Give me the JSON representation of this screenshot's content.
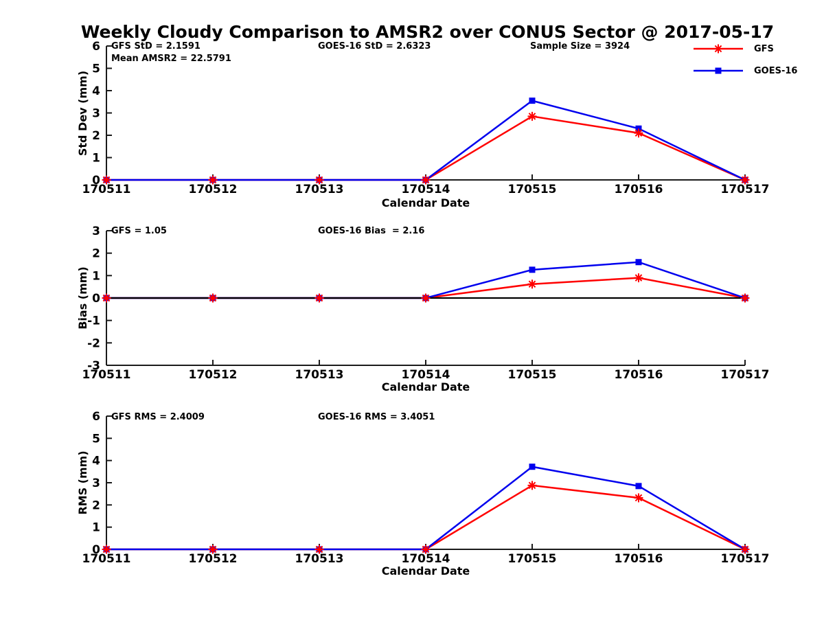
{
  "title": "Weekly Cloudy Comparison to AMSR2 over CONUS Sector @ 2017-05-17",
  "colors": {
    "gfs_red": "#ff0000",
    "goes_blue": "#0000ee",
    "axis": "#1a1a1a",
    "text": "#000000",
    "zero_line": "#000000",
    "background": "#ffffff"
  },
  "legend": {
    "position": "top-right",
    "items": [
      {
        "label": "GFS",
        "color": "#ff0000",
        "marker": "asterisk"
      },
      {
        "label": "GOES-16",
        "color": "#0000ee",
        "marker": "square"
      }
    ]
  },
  "chart_data": [
    {
      "type": "line",
      "xlabel": "Calendar Date",
      "ylabel": "Std Dev (mm)",
      "ylim": [
        0,
        6
      ],
      "yticks": [
        0,
        1,
        2,
        3,
        4,
        5,
        6
      ],
      "grid": false,
      "zero_line": false,
      "categories": [
        "170511",
        "170512",
        "170513",
        "170514",
        "170515",
        "170516",
        "170517"
      ],
      "series": [
        {
          "name": "GFS",
          "color": "#ff0000",
          "marker": "asterisk",
          "values": [
            0,
            0,
            0,
            0,
            2.85,
            2.1,
            0
          ]
        },
        {
          "name": "GOES-16",
          "color": "#0000ee",
          "marker": "square",
          "values": [
            0,
            0,
            0,
            0,
            3.55,
            2.3,
            0
          ]
        }
      ],
      "annotations": [
        "GFS StD = 2.1591",
        "Mean AMSR2 = 22.5791",
        "GOES-16 StD = 2.6323",
        "Sample Size = 3924"
      ]
    },
    {
      "type": "line",
      "xlabel": "Calendar Date",
      "ylabel": "Bias (mm)",
      "ylim": [
        -3,
        3
      ],
      "yticks": [
        3,
        2,
        1,
        0,
        -1,
        -2,
        -3
      ],
      "grid": false,
      "zero_line": true,
      "categories": [
        "170511",
        "170512",
        "170513",
        "170514",
        "170515",
        "170516",
        "170517"
      ],
      "series": [
        {
          "name": "GFS",
          "color": "#ff0000",
          "marker": "asterisk",
          "values": [
            0,
            0,
            0,
            0,
            0.62,
            0.9,
            0
          ]
        },
        {
          "name": "GOES-16",
          "color": "#0000ee",
          "marker": "square",
          "values": [
            0,
            0,
            0,
            0,
            1.26,
            1.6,
            0
          ]
        }
      ],
      "annotations": [
        "GFS = 1.05",
        "GOES-16 Bias  = 2.16"
      ]
    },
    {
      "type": "line",
      "xlabel": "Calendar Date",
      "ylabel": "RMS (mm)",
      "ylim": [
        0,
        6
      ],
      "yticks": [
        0,
        1,
        2,
        3,
        4,
        5,
        6
      ],
      "grid": false,
      "zero_line": false,
      "categories": [
        "170511",
        "170512",
        "170513",
        "170514",
        "170515",
        "170516",
        "170517"
      ],
      "series": [
        {
          "name": "GFS",
          "color": "#ff0000",
          "marker": "asterisk",
          "values": [
            0,
            0,
            0,
            0,
            2.88,
            2.32,
            0
          ]
        },
        {
          "name": "GOES-16",
          "color": "#0000ee",
          "marker": "square",
          "values": [
            0,
            0,
            0,
            0,
            3.72,
            2.85,
            0
          ]
        }
      ],
      "annotations": [
        "GFS RMS = 2.4009",
        "GOES-16 RMS = 3.4051"
      ]
    }
  ]
}
